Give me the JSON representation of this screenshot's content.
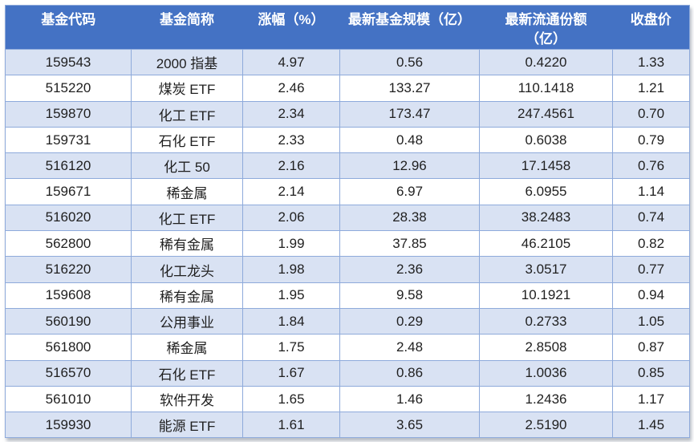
{
  "table": {
    "colors": {
      "header_bg": "#4472C4",
      "header_text": "#FFFFFF",
      "stripe_bg": "#D9E2F3",
      "plain_bg": "#FFFFFF",
      "border": "#8EAADB",
      "body_text": "#1F1F1F"
    },
    "columns": [
      {
        "key": "fund-code",
        "label": "基金代码"
      },
      {
        "key": "fund-name",
        "label": "基金简称"
      },
      {
        "key": "change-pct",
        "label": "涨幅（%）"
      },
      {
        "key": "fund-size",
        "label": "最新基金规模（亿）"
      },
      {
        "key": "float-shares",
        "label": "最新流通份额",
        "label_line2": "（亿）"
      },
      {
        "key": "close-price",
        "label": "收盘价"
      }
    ],
    "rows": [
      [
        "159543",
        "2000 指基",
        "4.97",
        "0.56",
        "0.4220",
        "1.33"
      ],
      [
        "515220",
        "煤炭 ETF",
        "2.46",
        "133.27",
        "110.1418",
        "1.21"
      ],
      [
        "159870",
        "化工 ETF",
        "2.34",
        "173.47",
        "247.4561",
        "0.70"
      ],
      [
        "159731",
        "石化 ETF",
        "2.33",
        "0.48",
        "0.6038",
        "0.79"
      ],
      [
        "516120",
        "化工 50",
        "2.16",
        "12.96",
        "17.1458",
        "0.76"
      ],
      [
        "159671",
        "稀金属",
        "2.14",
        "6.97",
        "6.0955",
        "1.14"
      ],
      [
        "516020",
        "化工 ETF",
        "2.06",
        "28.38",
        "38.2483",
        "0.74"
      ],
      [
        "562800",
        "稀有金属",
        "1.99",
        "37.85",
        "46.2105",
        "0.82"
      ],
      [
        "516220",
        "化工龙头",
        "1.98",
        "2.36",
        "3.0517",
        "0.77"
      ],
      [
        "159608",
        "稀有金属",
        "1.95",
        "9.58",
        "10.1921",
        "0.94"
      ],
      [
        "560190",
        "公用事业",
        "1.84",
        "0.29",
        "0.2733",
        "1.05"
      ],
      [
        "561800",
        "稀金属",
        "1.75",
        "2.48",
        "2.8508",
        "0.87"
      ],
      [
        "516570",
        "石化 ETF",
        "1.67",
        "0.86",
        "1.0036",
        "0.85"
      ],
      [
        "561010",
        "软件开发",
        "1.65",
        "1.46",
        "1.2436",
        "1.17"
      ],
      [
        "159930",
        "能源 ETF",
        "1.61",
        "3.65",
        "2.5190",
        "1.45"
      ]
    ]
  }
}
